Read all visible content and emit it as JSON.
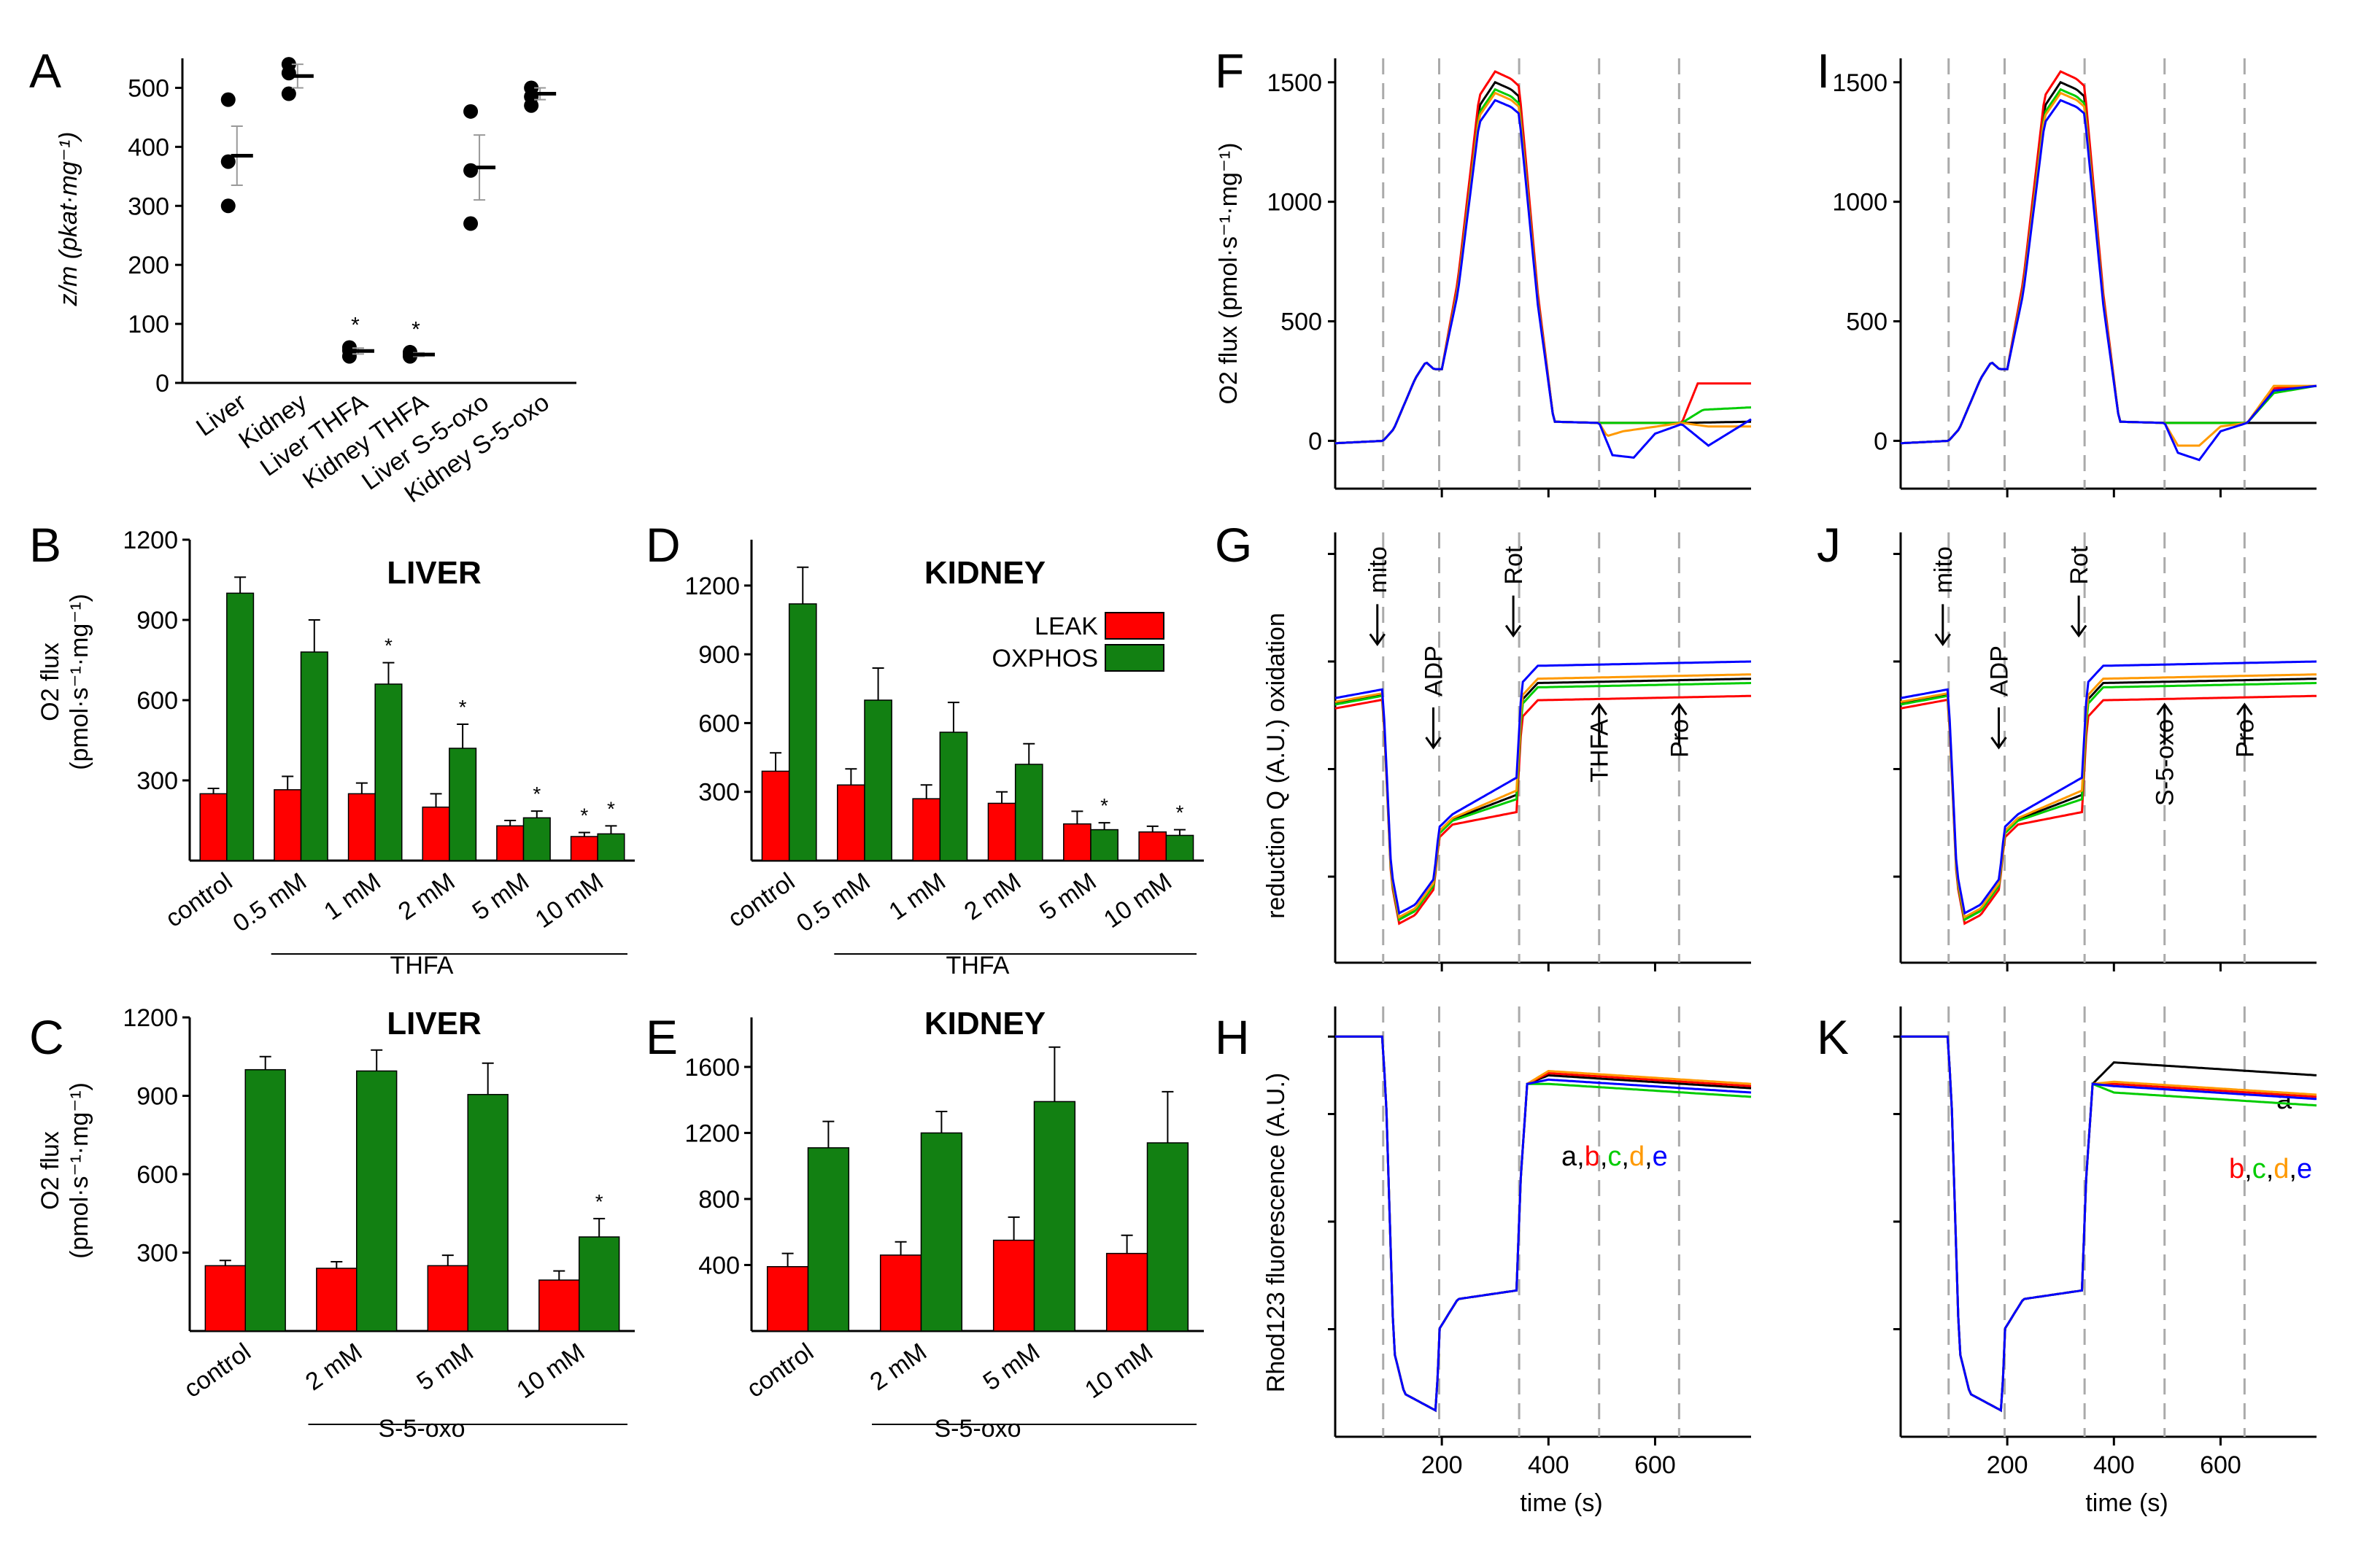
{
  "panels": {
    "A": {
      "letter": "A",
      "ylabel": "z/m (pkat·mg⁻¹)",
      "chart_data": {
        "type": "scatter",
        "ylim": [
          0,
          550
        ],
        "yticks": [
          0,
          100,
          200,
          300,
          400,
          500
        ],
        "categories": [
          "Liver",
          "Kidney",
          "Liver THFA",
          "Kidney THFA",
          "Liver S-5-oxo",
          "Kidney S-5-oxo"
        ],
        "points": [
          [
            480,
            375,
            300
          ],
          [
            540,
            525,
            490
          ],
          [
            60,
            55,
            45
          ],
          [
            52,
            48,
            45
          ],
          [
            460,
            360,
            270
          ],
          [
            500,
            485,
            470
          ]
        ],
        "means": [
          385,
          520,
          54,
          48,
          365,
          490
        ],
        "errors": [
          50,
          20,
          5,
          3,
          55,
          10
        ],
        "significance": [
          "",
          "",
          "*",
          "*",
          "",
          ""
        ]
      }
    },
    "B": {
      "letter": "B",
      "title": "LIVER",
      "ylabel1": "O2 flux",
      "ylabel2": "(pmol·s⁻¹·mg⁻¹)",
      "group_label": "THFA",
      "chart_data": {
        "type": "bar",
        "ylim": [
          0,
          1200
        ],
        "yticks": [
          300,
          600,
          900,
          1200
        ],
        "categories": [
          "control",
          "0.5 mM",
          "1 mM",
          "2 mM",
          "5 mM",
          "10 mM"
        ],
        "series": [
          {
            "name": "LEAK",
            "color": "#ff0000",
            "values": [
              250,
              265,
              250,
              200,
              130,
              90
            ],
            "errors": [
              20,
              50,
              40,
              50,
              20,
              15
            ],
            "sig": [
              "",
              "",
              "",
              "",
              "",
              "*"
            ]
          },
          {
            "name": "OXPHOS",
            "color": "#128012",
            "values": [
              1000,
              780,
              660,
              420,
              160,
              100
            ],
            "errors": [
              60,
              120,
              80,
              90,
              25,
              30
            ],
            "sig": [
              "",
              "",
              "*",
              "*",
              "*",
              "*"
            ]
          }
        ]
      }
    },
    "C": {
      "letter": "C",
      "title": "LIVER",
      "ylabel1": "O2 flux",
      "ylabel2": "(pmol·s⁻¹·mg⁻¹)",
      "group_label": "S-5-oxo",
      "chart_data": {
        "type": "bar",
        "ylim": [
          0,
          1200
        ],
        "yticks": [
          300,
          600,
          900,
          1200
        ],
        "categories": [
          "control",
          "2 mM",
          "5 mM",
          "10 mM"
        ],
        "series": [
          {
            "name": "LEAK",
            "color": "#ff0000",
            "values": [
              250,
              240,
              250,
              195
            ],
            "errors": [
              20,
              25,
              40,
              35
            ],
            "sig": [
              "",
              "",
              "",
              ""
            ]
          },
          {
            "name": "OXPHOS",
            "color": "#128012",
            "values": [
              1000,
              995,
              905,
              360
            ],
            "errors": [
              50,
              80,
              120,
              70
            ],
            "sig": [
              "",
              "",
              "",
              "*"
            ]
          }
        ]
      }
    },
    "D": {
      "letter": "D",
      "title": "KIDNEY",
      "group_label": "THFA",
      "legend": [
        "LEAK",
        "OXPHOS"
      ],
      "chart_data": {
        "type": "bar",
        "ylim": [
          0,
          1400
        ],
        "yticks": [
          300,
          600,
          900,
          1200
        ],
        "categories": [
          "control",
          "0.5 mM",
          "1 mM",
          "2 mM",
          "5 mM",
          "10 mM"
        ],
        "series": [
          {
            "name": "LEAK",
            "color": "#ff0000",
            "values": [
              390,
              330,
              270,
              250,
              160,
              125
            ],
            "errors": [
              80,
              70,
              60,
              50,
              55,
              25
            ],
            "sig": [
              "",
              "",
              "",
              "",
              "",
              ""
            ]
          },
          {
            "name": "OXPHOS",
            "color": "#128012",
            "values": [
              1120,
              700,
              560,
              420,
              135,
              110
            ],
            "errors": [
              160,
              140,
              130,
              90,
              30,
              25
            ],
            "sig": [
              "",
              "",
              "",
              "",
              "*",
              "*"
            ]
          }
        ]
      }
    },
    "E": {
      "letter": "E",
      "title": "KIDNEY",
      "group_label": "S-5-oxo",
      "chart_data": {
        "type": "bar",
        "ylim": [
          0,
          1900
        ],
        "yticks": [
          400,
          800,
          1200,
          1600
        ],
        "categories": [
          "control",
          "2 mM",
          "5 mM",
          "10 mM"
        ],
        "series": [
          {
            "name": "LEAK",
            "color": "#ff0000",
            "values": [
              390,
              460,
              550,
              470
            ],
            "errors": [
              80,
              80,
              140,
              110
            ],
            "sig": [
              "",
              "",
              "",
              ""
            ]
          },
          {
            "name": "OXPHOS",
            "color": "#128012",
            "values": [
              1110,
              1200,
              1390,
              1140
            ],
            "errors": [
              160,
              130,
              330,
              310
            ],
            "sig": [
              "",
              "",
              "",
              ""
            ]
          }
        ]
      }
    }
  },
  "traces": {
    "F": {
      "letter": "F"
    },
    "G": {
      "letter": "G",
      "arrows": [
        "mito",
        "ADP",
        "Rot",
        "THFA",
        "Pro"
      ]
    },
    "H": {
      "letter": "H",
      "annotation": [
        "a",
        "b",
        "c",
        "d",
        "e"
      ]
    },
    "I": {
      "letter": "I"
    },
    "J": {
      "letter": "J",
      "arrows": [
        "mito",
        "ADP",
        "Rot",
        "S-5-oxo",
        "Pro"
      ]
    },
    "K": {
      "letter": "K",
      "annotation_top": "a",
      "annotation": [
        "b",
        "c",
        "d",
        "e"
      ]
    },
    "f_ylabel": "O2 flux (pmol·s⁻¹·mg⁻¹)",
    "f_yticks": [
      0,
      500,
      1000,
      1500
    ],
    "g_ylabel": "reduction Q (A.U.) oxidation",
    "h_ylabel": "Rhod123 fluorescence (A.U.)",
    "xlabel": "time (s)",
    "xticks": [
      200,
      400,
      600
    ],
    "xlim": [
      0,
      780
    ],
    "event_times": [
      90,
      195,
      345,
      495,
      645
    ],
    "colors": {
      "a": "#000000",
      "b": "#ff0000",
      "c": "#00cc00",
      "d": "#ff9900",
      "e": "#0000ff"
    }
  },
  "legend_colors": {
    "LEAK": "#ff0000",
    "OXPHOS": "#128012"
  }
}
